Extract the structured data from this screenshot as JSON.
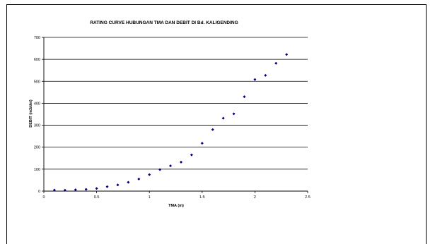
{
  "chart_data": {
    "type": "scatter",
    "title": "RATING CURVE HUBUNGAN TMA DAN DEBIT DI Bd. KALIGENDING",
    "xlabel": "TMA (m)",
    "ylabel": "DEBIT (m3/det)",
    "xlim": [
      0,
      2.5
    ],
    "ylim": [
      0,
      700
    ],
    "xticks": [
      "0",
      "0.5",
      "1",
      "1.5",
      "2",
      "2.5"
    ],
    "yticks": [
      "0",
      "100",
      "200",
      "300",
      "400",
      "500",
      "600",
      "700"
    ],
    "grid": "horizontal",
    "marker_color": "#000080",
    "points": [
      {
        "x": 0.1,
        "y": 5
      },
      {
        "x": 0.2,
        "y": 4
      },
      {
        "x": 0.3,
        "y": 6
      },
      {
        "x": 0.4,
        "y": 8
      },
      {
        "x": 0.5,
        "y": 12
      },
      {
        "x": 0.6,
        "y": 20
      },
      {
        "x": 0.7,
        "y": 28
      },
      {
        "x": 0.8,
        "y": 40
      },
      {
        "x": 0.9,
        "y": 55
      },
      {
        "x": 1.0,
        "y": 75
      },
      {
        "x": 1.1,
        "y": 98
      },
      {
        "x": 1.2,
        "y": 115
      },
      {
        "x": 1.3,
        "y": 132
      },
      {
        "x": 1.4,
        "y": 165
      },
      {
        "x": 1.5,
        "y": 218
      },
      {
        "x": 1.6,
        "y": 280
      },
      {
        "x": 1.7,
        "y": 332
      },
      {
        "x": 1.8,
        "y": 352
      },
      {
        "x": 1.9,
        "y": 430
      },
      {
        "x": 2.0,
        "y": 508
      },
      {
        "x": 2.1,
        "y": 527
      },
      {
        "x": 2.2,
        "y": 582
      },
      {
        "x": 2.3,
        "y": 622
      }
    ]
  }
}
